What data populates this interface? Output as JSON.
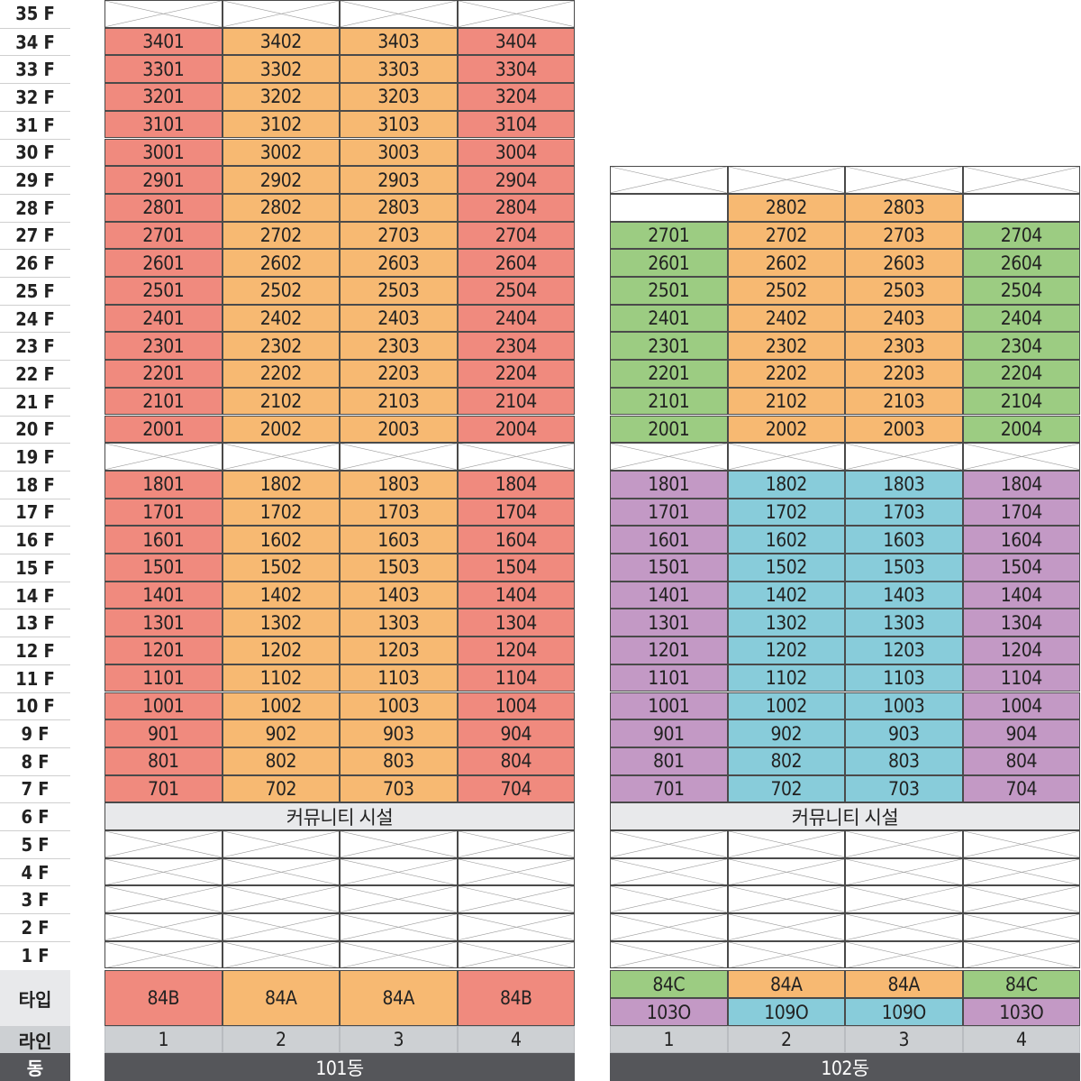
{
  "floors": [
    "35 F",
    "34 F",
    "33 F",
    "32 F",
    "31 F",
    "30 F",
    "29 F",
    "28 F",
    "27 F",
    "26 F",
    "25 F",
    "24 F",
    "23 F",
    "22 F",
    "21 F",
    "20 F",
    "19 F",
    "18 F",
    "17 F",
    "16 F",
    "15 F",
    "14 F",
    "13 F",
    "12 F",
    "11 F",
    "10 F",
    "9 F",
    "8 F",
    "7 F",
    "6 F",
    "5 F",
    "4 F",
    "3 F",
    "2 F",
    "1 F"
  ],
  "labels": {
    "type": "타입",
    "line": "라인",
    "building": "동"
  },
  "colors": {
    "red": "#F08A7E",
    "orange": "#F7B972",
    "green": "#9CCC82",
    "purple": "#C399C5",
    "blue": "#88CCDA",
    "community": "#E8E9EB",
    "line_row": "#CDD0D3",
    "building_row": "#55565A",
    "grid": "#4a4a4a"
  },
  "buildings": [
    {
      "name": "101동",
      "top_floor": 34,
      "empty_floors": [
        35,
        19,
        5,
        4,
        3,
        2,
        1
      ],
      "community_floor": 6,
      "community_label": "커뮤니티 시설",
      "lines": [
        "1",
        "2",
        "3",
        "4"
      ],
      "line_colors": [
        "red",
        "orange",
        "orange",
        "red"
      ],
      "types": [
        [
          {
            "label": "84B",
            "color": "red"
          }
        ],
        [
          {
            "label": "84A",
            "color": "orange"
          }
        ],
        [
          {
            "label": "84A",
            "color": "orange"
          }
        ],
        [
          {
            "label": "84B",
            "color": "red"
          }
        ]
      ]
    },
    {
      "name": "102동",
      "top_floor": 28,
      "empty_floors": [
        29,
        19,
        5,
        4,
        3,
        2,
        1
      ],
      "community_floor": 6,
      "community_label": "커뮤니티 시설",
      "lines": [
        "1",
        "2",
        "3",
        "4"
      ],
      "upper_colors": [
        "green",
        "orange",
        "orange",
        "green"
      ],
      "lower_colors": [
        "purple",
        "blue",
        "blue",
        "purple"
      ],
      "partial_floor": 28,
      "partial_lines": [
        2,
        3
      ],
      "types": [
        [
          {
            "label": "84C",
            "color": "green"
          },
          {
            "label": "103O",
            "color": "purple"
          }
        ],
        [
          {
            "label": "84A",
            "color": "orange"
          },
          {
            "label": "109O",
            "color": "blue"
          }
        ],
        [
          {
            "label": "84A",
            "color": "orange"
          },
          {
            "label": "109O",
            "color": "blue"
          }
        ],
        [
          {
            "label": "84C",
            "color": "green"
          },
          {
            "label": "103O",
            "color": "purple"
          }
        ]
      ]
    }
  ]
}
